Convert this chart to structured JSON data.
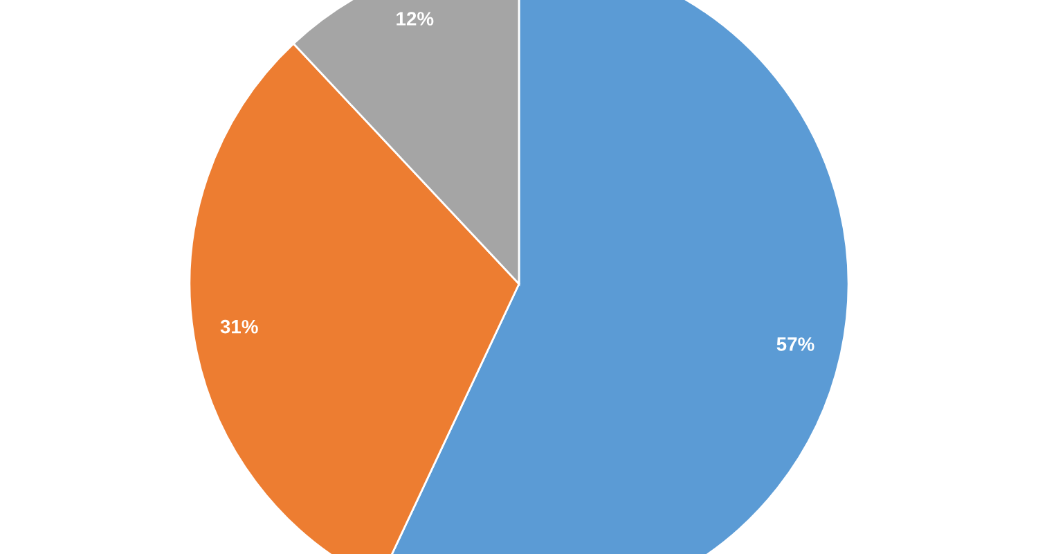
{
  "chart_data": {
    "type": "pie",
    "categories": [
      null,
      null,
      null
    ],
    "values": [
      57,
      31,
      12
    ],
    "colors": [
      "#5b9bd5",
      "#ed7d31",
      "#a5a5a5"
    ],
    "value_labels": [
      "57%",
      "31%",
      "12%"
    ],
    "legend": false
  }
}
